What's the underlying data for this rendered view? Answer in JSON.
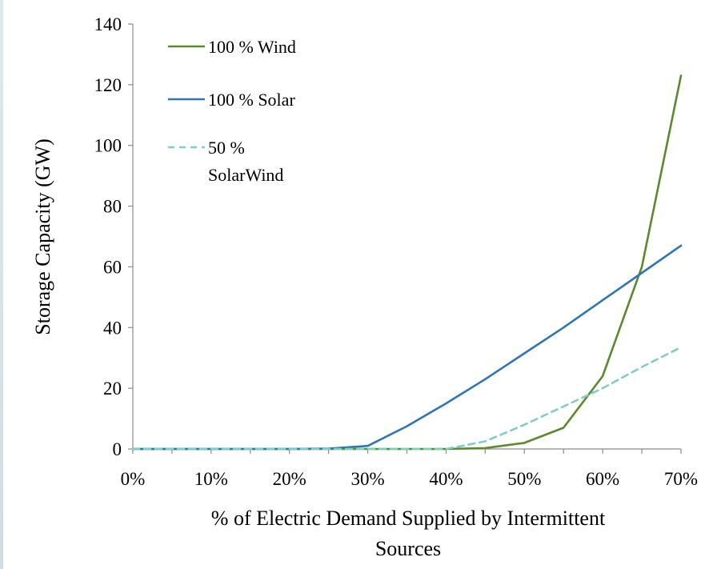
{
  "chart_data": {
    "type": "line",
    "title": "",
    "xlabel": "% of Electric Demand Supplied by Intermittent Sources",
    "xlabel_lines": [
      "% of Electric Demand Supplied by Intermittent",
      "Sources"
    ],
    "ylabel": "Storage Capacity (GW)",
    "x": [
      0,
      5,
      10,
      15,
      20,
      25,
      30,
      35,
      40,
      45,
      50,
      55,
      60,
      65,
      70
    ],
    "x_tick_labels": [
      "0%",
      "10%",
      "20%",
      "30%",
      "40%",
      "50%",
      "60%",
      "70%"
    ],
    "x_tick_values": [
      0,
      10,
      20,
      30,
      40,
      50,
      60,
      70
    ],
    "y_tick_labels": [
      "0",
      "20",
      "40",
      "60",
      "80",
      "100",
      "120",
      "140"
    ],
    "y_tick_values": [
      0,
      20,
      40,
      60,
      80,
      100,
      120,
      140
    ],
    "xlim": [
      0,
      70
    ],
    "ylim": [
      0,
      140
    ],
    "grid": false,
    "legend_position": "top-left",
    "series": [
      {
        "name": "100 % Wind",
        "legend_lines": [
          "100 % Wind"
        ],
        "color": "#5b8a2e",
        "dash": "solid",
        "values": [
          0,
          0,
          0,
          0,
          0,
          0,
          0,
          0,
          0,
          0.3,
          2,
          7,
          24,
          60,
          123
        ]
      },
      {
        "name": "100 % Solar",
        "legend_lines": [
          "100 % Solar"
        ],
        "color": "#2e75b6",
        "dash": "solid",
        "values": [
          0,
          0,
          0,
          0,
          0,
          0.1,
          1,
          7.5,
          15,
          23,
          31.5,
          40,
          49,
          58,
          67
        ]
      },
      {
        "name": "50 % SolarWind",
        "legend_lines": [
          "50 %",
          "SolarWind"
        ],
        "color": "#7fcdc4",
        "dash": "dashed",
        "values": [
          0,
          0,
          0,
          0,
          0,
          0,
          0,
          0,
          0,
          2.5,
          8,
          14,
          20,
          27,
          33.5
        ]
      }
    ]
  }
}
